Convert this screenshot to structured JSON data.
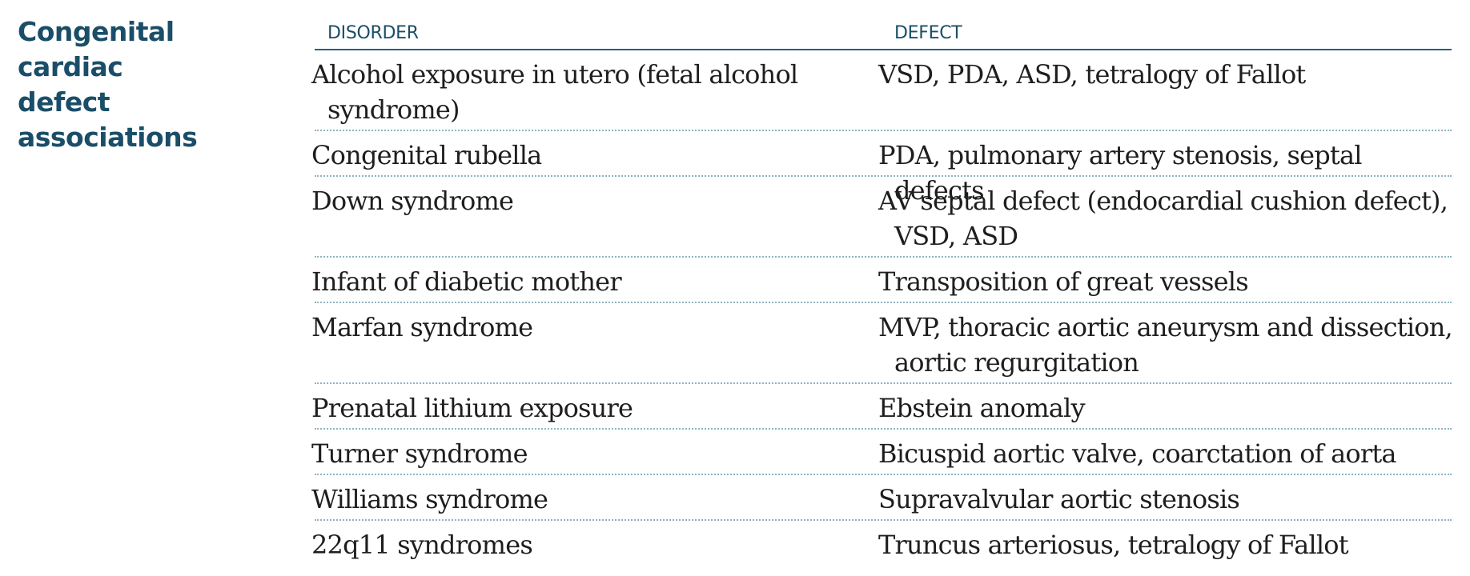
{
  "title_lines": [
    "Congenital cardiac",
    "defect associations"
  ],
  "table": {
    "headers": [
      "DISORDER",
      "DEFECT"
    ],
    "rows": [
      {
        "disorder": "Alcohol exposure in utero (fetal alcohol syndrome)",
        "defect": "VSD, PDA, ASD, tetralogy of Fallot"
      },
      {
        "disorder": "Congenital rubella",
        "defect": "PDA, pulmonary artery stenosis, septal defects"
      },
      {
        "disorder": "Down syndrome",
        "defect": "AV septal defect (endocardial cushion defect), VSD, ASD"
      },
      {
        "disorder": "Infant of diabetic mother",
        "defect": "Transposition of great vessels"
      },
      {
        "disorder": "Marfan syndrome",
        "defect": "MVP, thoracic aortic aneurysm and dissection, aortic regurgitation"
      },
      {
        "disorder": "Prenatal lithium exposure",
        "defect": "Ebstein anomaly"
      },
      {
        "disorder": "Turner syndrome",
        "defect": "Bicuspid aortic valve, coarctation of aorta"
      },
      {
        "disorder": "Williams syndrome",
        "defect": "Supravalvular aortic stenosis"
      },
      {
        "disorder": "22q11 syndromes",
        "defect": "Truncus arteriosus, tetralogy of Fallot"
      }
    ]
  }
}
